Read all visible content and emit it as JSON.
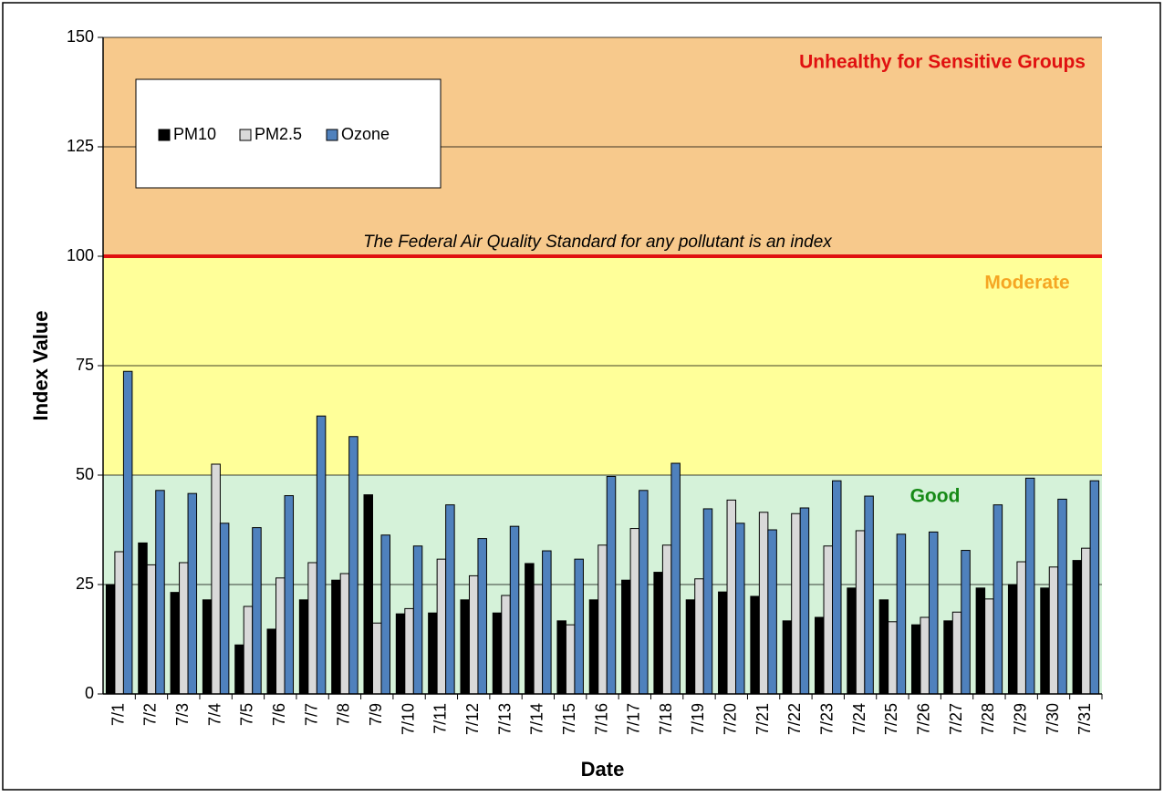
{
  "chart_data": {
    "type": "bar",
    "x_label": "Date",
    "y_label": "Index Value",
    "categories": [
      "7/1",
      "7/2",
      "7/3",
      "7/4",
      "7/5",
      "7/6",
      "7/7",
      "7/8",
      "7/9",
      "7/10",
      "7/11",
      "7/12",
      "7/13",
      "7/14",
      "7/15",
      "7/16",
      "7/17",
      "7/18",
      "7/19",
      "7/20",
      "7/21",
      "7/22",
      "7/23",
      "7/24",
      "7/25",
      "7/26",
      "7/27",
      "7/28",
      "7/29",
      "7/30",
      "7/31"
    ],
    "series": [
      {
        "name": "PM10",
        "color": "#000000",
        "values": [
          25,
          34.5,
          23.2,
          21.5,
          11.2,
          14.8,
          21.5,
          26,
          45.5,
          18.3,
          18.5,
          21.5,
          18.5,
          29.8,
          16.7,
          21.5,
          26,
          27.8,
          21.5,
          23.3,
          22.3,
          16.7,
          17.5,
          24.2,
          21.5,
          15.8,
          16.7,
          24.2,
          25,
          24.2,
          30.5
        ]
      },
      {
        "name": "PM2.5",
        "color": "#d9d9d9",
        "values": [
          32.5,
          29.5,
          30,
          52.5,
          20,
          26.5,
          30,
          27.5,
          16.2,
          19.5,
          30.8,
          27,
          22.5,
          25,
          15.8,
          34,
          37.8,
          34,
          26.3,
          44.3,
          41.5,
          41.2,
          33.8,
          37.3,
          16.5,
          17.5,
          18.7,
          21.7,
          30.2,
          29,
          33.3
        ]
      },
      {
        "name": "Ozone",
        "color": "#4f81bd",
        "values": [
          73.7,
          46.5,
          45.8,
          39,
          38,
          45.3,
          63.5,
          58.8,
          36.3,
          33.8,
          43.2,
          35.5,
          38.3,
          32.7,
          30.8,
          49.7,
          46.5,
          52.7,
          42.3,
          39,
          37.5,
          42.5,
          48.7,
          45.2,
          36.5,
          37,
          32.8,
          43.2,
          49.3,
          44.5,
          48.7
        ]
      }
    ],
    "ylim": [
      0,
      150
    ],
    "yticks": [
      0,
      25,
      50,
      75,
      100,
      125,
      150
    ],
    "grid": true,
    "legend_position": "upper left",
    "bands": [
      {
        "label": "Good",
        "from": 0,
        "to": 50,
        "color": "#d5f2d9",
        "label_color": "#168a16"
      },
      {
        "label": "Moderate",
        "from": 50,
        "to": 100,
        "color": "#ffff99",
        "label_color": "#f5a623"
      },
      {
        "label": "Unhealthy for Sensitive Groups",
        "from": 100,
        "to": 150,
        "color": "#f7c98c",
        "label_color": "#e01010"
      }
    ],
    "reference_line": {
      "value": 100,
      "label": "The Federal Air Quality Standard for any pollutant is an index",
      "color": "#e01010"
    }
  }
}
